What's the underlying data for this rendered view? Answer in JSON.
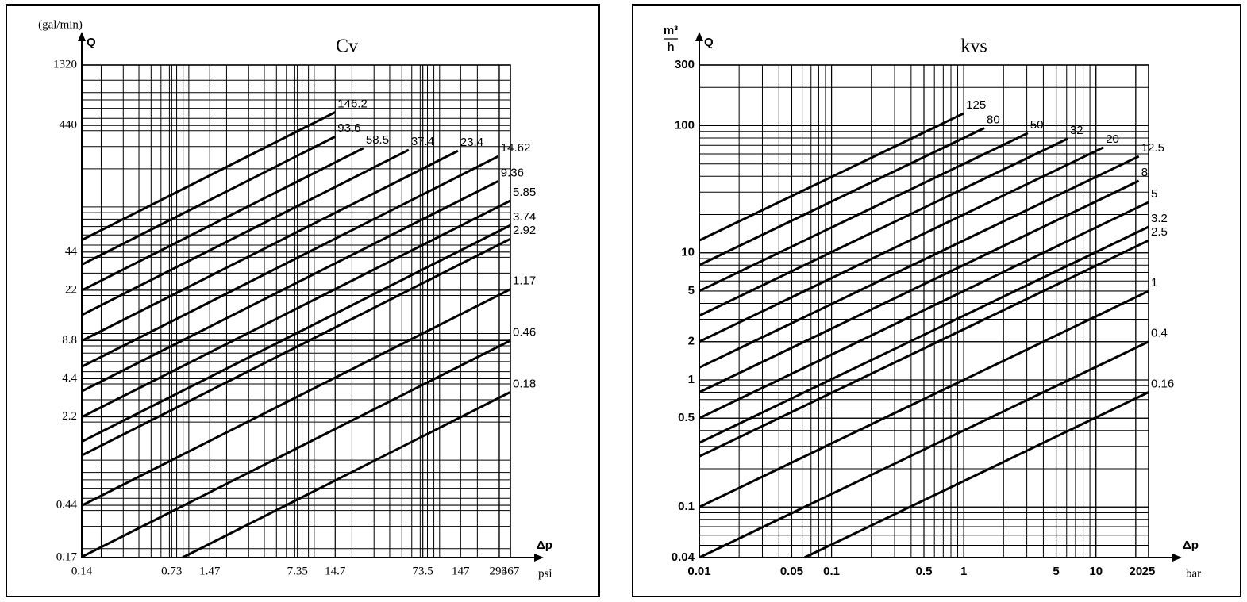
{
  "chart_data": [
    {
      "type": "line",
      "title": "Cv",
      "y_unit": "(gal/min)",
      "y_label": "Q",
      "x_label": "Δp",
      "x_unit": "psi",
      "log_x": true,
      "log_y": true,
      "grid": true,
      "color": "#000000",
      "xlim": [
        0.14,
        367
      ],
      "ylim": [
        0.17,
        1320
      ],
      "xticks": [
        0.14,
        0.73,
        1.47,
        7.35,
        14.7,
        73.5,
        147,
        294,
        367
      ],
      "yticks": [
        0.17,
        0.44,
        2.2,
        4.4,
        8.8,
        22,
        44,
        440,
        1320
      ],
      "series": [
        {
          "name": "146.2",
          "x": [
            0.14,
            14.7
          ],
          "values": [
            54.7,
            560
          ]
        },
        {
          "name": "93.6",
          "x": [
            0.14,
            14.7
          ],
          "values": [
            35.0,
            359
          ]
        },
        {
          "name": "58.5",
          "x": [
            0.14,
            24.7
          ],
          "values": [
            21.9,
            291
          ]
        },
        {
          "name": "37.4",
          "x": [
            0.14,
            56.7
          ],
          "values": [
            14.0,
            282
          ]
        },
        {
          "name": "23.4",
          "x": [
            0.14,
            140
          ],
          "values": [
            8.76,
            277
          ]
        },
        {
          "name": "14.62",
          "x": [
            0.14,
            294
          ],
          "values": [
            5.47,
            251
          ]
        },
        {
          "name": "9.36",
          "x": [
            0.14,
            294
          ],
          "values": [
            3.5,
            160
          ]
        },
        {
          "name": "5.85",
          "x": [
            0.14,
            367
          ],
          "values": [
            2.19,
            112
          ]
        },
        {
          "name": "3.74",
          "x": [
            0.14,
            367
          ],
          "values": [
            1.4,
            71.6
          ]
        },
        {
          "name": "2.92",
          "x": [
            0.14,
            367
          ],
          "values": [
            1.09,
            55.9
          ]
        },
        {
          "name": "1.17",
          "x": [
            0.14,
            367
          ],
          "values": [
            0.438,
            22.4
          ]
        },
        {
          "name": "0.46",
          "x": [
            0.14,
            367
          ],
          "values": [
            0.172,
            8.81
          ]
        },
        {
          "name": "0.18",
          "x": [
            0.89,
            367
          ],
          "values": [
            0.17,
            3.45
          ]
        }
      ]
    },
    {
      "type": "line",
      "title": "kvs",
      "y_unit_top": "m³",
      "y_unit_bottom": "h",
      "y_label": "Q",
      "x_label": "Δp",
      "x_unit": "bar",
      "log_x": true,
      "log_y": true,
      "grid": true,
      "color": "#000000",
      "xlim": [
        0.01,
        25
      ],
      "ylim": [
        0.04,
        300
      ],
      "xticks": [
        0.01,
        0.05,
        0.1,
        0.5,
        1,
        5,
        10,
        20,
        25
      ],
      "yticks": [
        0.04,
        0.1,
        0.5,
        1,
        2,
        5,
        10,
        100,
        300
      ],
      "series": [
        {
          "name": "125",
          "x": [
            0.01,
            1
          ],
          "values": [
            12.5,
            125
          ]
        },
        {
          "name": "80",
          "x": [
            0.01,
            1.43
          ],
          "values": [
            8,
            95.7
          ]
        },
        {
          "name": "50",
          "x": [
            0.01,
            3.05
          ],
          "values": [
            5,
            87.4
          ]
        },
        {
          "name": "32",
          "x": [
            0.01,
            6.1
          ],
          "values": [
            3.2,
            79
          ]
        },
        {
          "name": "20",
          "x": [
            0.01,
            11.4
          ],
          "values": [
            2,
            67.5
          ]
        },
        {
          "name": "12.5",
          "x": [
            0.01,
            21.1
          ],
          "values": [
            1.25,
            57.4
          ]
        },
        {
          "name": "8",
          "x": [
            0.01,
            21.1
          ],
          "values": [
            0.8,
            36.8
          ]
        },
        {
          "name": "5",
          "x": [
            0.01,
            25
          ],
          "values": [
            0.5,
            25
          ]
        },
        {
          "name": "3.2",
          "x": [
            0.01,
            25
          ],
          "values": [
            0.32,
            16
          ]
        },
        {
          "name": "2.5",
          "x": [
            0.01,
            25
          ],
          "values": [
            0.25,
            12.5
          ]
        },
        {
          "name": "1",
          "x": [
            0.01,
            25
          ],
          "values": [
            0.1,
            5
          ]
        },
        {
          "name": "0.4",
          "x": [
            0.01,
            25
          ],
          "values": [
            0.04,
            2
          ]
        },
        {
          "name": "0.16",
          "x": [
            0.0625,
            25
          ],
          "values": [
            0.04,
            0.8
          ]
        }
      ]
    }
  ]
}
